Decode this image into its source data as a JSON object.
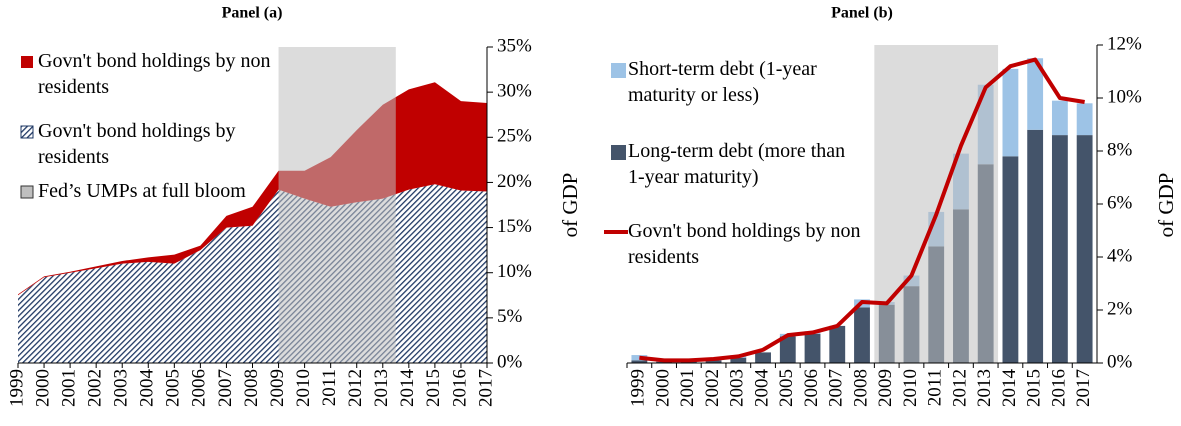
{
  "chart_data": [
    {
      "type": "area",
      "title": "Panel (a)",
      "y_label": "of GDP",
      "x": [
        1999,
        2000,
        2001,
        2002,
        2003,
        2004,
        2005,
        2006,
        2007,
        2008,
        2009,
        2010,
        2011,
        2012,
        2013,
        2014,
        2015,
        2016,
        2017
      ],
      "xlim": [
        1999,
        2017
      ],
      "series": [
        {
          "name": "Govn't bond holdings by residents",
          "color": "#1f3864",
          "hatch": true,
          "values": [
            7.5,
            9.5,
            10,
            10.5,
            11,
            11.2,
            11,
            12.5,
            15,
            15.2,
            19.2,
            18.2,
            17.3,
            17.8,
            18.2,
            19.2,
            19.8,
            19.1,
            19
          ]
        },
        {
          "name": "Govn't bond holdings by non residents",
          "color": "#c00000",
          "hatch": false,
          "values": [
            0.1,
            0.1,
            0.1,
            0.2,
            0.3,
            0.5,
            1,
            0.5,
            1.3,
            2.1,
            2.1,
            3.1,
            5.5,
            8,
            10.4,
            11.1,
            11.3,
            9.9,
            9.8
          ]
        }
      ],
      "shade": [
        2009,
        2013
      ],
      "shade_color": "#bfbfbf",
      "shade_label": "Fed’s UMPs at full bloom",
      "ylim": [
        0,
        35
      ],
      "yticks": [
        {
          "value": 0,
          "label": "0%"
        },
        {
          "value": 5,
          "label": "5%"
        },
        {
          "value": 10,
          "label": "10%"
        },
        {
          "value": 15,
          "label": "15%"
        },
        {
          "value": 20,
          "label": "20%"
        },
        {
          "value": 25,
          "label": "25%"
        },
        {
          "value": 30,
          "label": "30%"
        },
        {
          "value": 35,
          "label": "35%"
        }
      ],
      "grid": false,
      "legend": "upper left"
    },
    {
      "type": "bar",
      "title": "Panel (b)",
      "y_label": "of GDP",
      "categories": [
        "1999",
        "2000",
        "2001",
        "2002",
        "2003",
        "2004",
        "2005",
        "2006",
        "2007",
        "2008",
        "2009",
        "2010",
        "2011",
        "2012",
        "2013",
        "2014",
        "2015",
        "2016",
        "2017"
      ],
      "series": [
        {
          "name": "Long-term debt (more than 1-year maturity)",
          "color": "#44546a",
          "type": "bar",
          "values": [
            0.1,
            0.05,
            0.1,
            0.1,
            0.2,
            0.4,
            1.0,
            1.1,
            1.4,
            2.1,
            2.2,
            2.9,
            4.4,
            5.8,
            7.5,
            7.8,
            8.8,
            8.6,
            8.6
          ]
        },
        {
          "name": "Short-term debt (1-year maturity or less)",
          "color": "#9dc3e6",
          "type": "bar",
          "values": [
            0.2,
            0.05,
            0,
            0.1,
            0.1,
            0,
            0.1,
            0.1,
            0,
            0.3,
            0.1,
            0.4,
            1.3,
            2.1,
            3,
            3.3,
            2.7,
            1.3,
            1.2
          ]
        },
        {
          "name": "Govn't bond holdings by non residents",
          "color": "#c00000",
          "type": "line",
          "values": [
            0.2,
            0.1,
            0.1,
            0.15,
            0.25,
            0.5,
            1.05,
            1.15,
            1.4,
            2.3,
            2.25,
            3.3,
            5.6,
            8.2,
            10.4,
            11.2,
            11.45,
            10,
            9.85
          ]
        }
      ],
      "shade": [
        "2009",
        "2013"
      ],
      "shade_color": "#bfbfbf",
      "ylim": [
        0,
        12
      ],
      "yticks": [
        {
          "value": 0,
          "label": "0%"
        },
        {
          "value": 2,
          "label": "2%"
        },
        {
          "value": 4,
          "label": "4%"
        },
        {
          "value": 6,
          "label": "6%"
        },
        {
          "value": 8,
          "label": "8%"
        },
        {
          "value": 10,
          "label": "10%"
        },
        {
          "value": 12,
          "label": "12%"
        }
      ],
      "grid": false,
      "legend": "upper left"
    }
  ]
}
